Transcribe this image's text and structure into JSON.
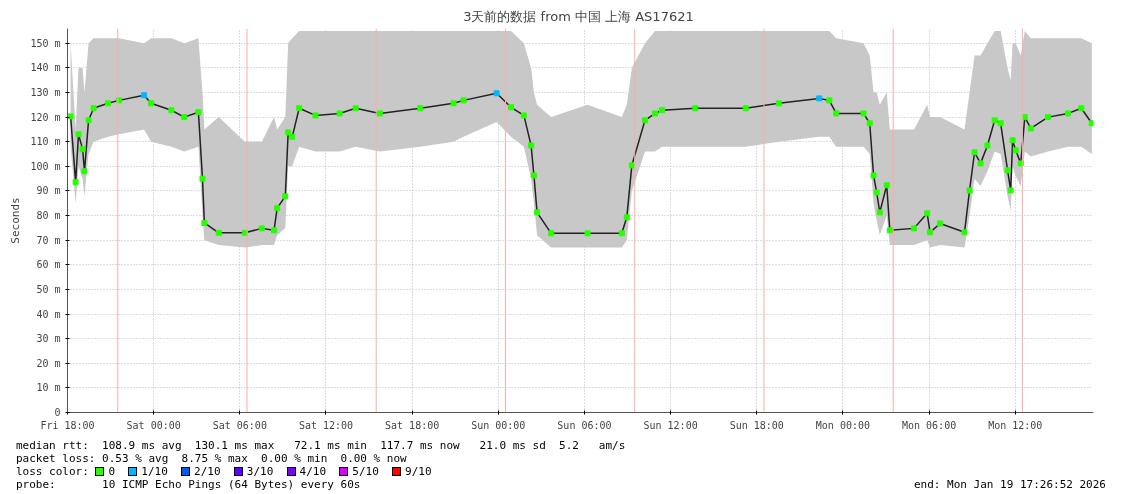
{
  "chart_data": {
    "type": "line",
    "title": "3天前的数据 from  中国 上海 AS17621",
    "ylabel": "Seconds",
    "xlim": [
      "2026-01-16T18:00",
      "2026-01-19T17:27"
    ],
    "ylim": [
      0,
      156
    ],
    "xticks": [
      {
        "value": "2026-01-16T18:00",
        "label": "Fri 18:00"
      },
      {
        "value": "2026-01-17T00:00",
        "label": "Sat 00:00"
      },
      {
        "value": "2026-01-17T06:00",
        "label": "Sat 06:00"
      },
      {
        "value": "2026-01-17T12:00",
        "label": "Sat 12:00"
      },
      {
        "value": "2026-01-17T18:00",
        "label": "Sat 18:00"
      },
      {
        "value": "2026-01-18T00:00",
        "label": "Sun 00:00"
      },
      {
        "value": "2026-01-18T06:00",
        "label": "Sun 06:00"
      },
      {
        "value": "2026-01-18T12:00",
        "label": "Sun 12:00"
      },
      {
        "value": "2026-01-18T18:00",
        "label": "Sun 18:00"
      },
      {
        "value": "2026-01-19T00:00",
        "label": "Mon 00:00"
      },
      {
        "value": "2026-01-19T06:00",
        "label": "Mon 06:00"
      },
      {
        "value": "2026-01-19T12:00",
        "label": "Mon 12:00"
      }
    ],
    "yticks": [
      0,
      {
        "value": 10,
        "label": "10 m"
      },
      {
        "value": 20,
        "label": "20 m"
      },
      {
        "value": 30,
        "label": "30 m"
      },
      {
        "value": 40,
        "label": "40 m"
      },
      {
        "value": 50,
        "label": "50 m"
      },
      {
        "value": 60,
        "label": "60 m"
      },
      {
        "value": 70,
        "label": "70 m"
      },
      {
        "value": 80,
        "label": "80 m"
      },
      {
        "value": 90,
        "label": "90 m"
      },
      {
        "value": 100,
        "label": "100 m"
      },
      {
        "value": 110,
        "label": "110 m"
      },
      {
        "value": 120,
        "label": "120 m"
      },
      {
        "value": 130,
        "label": "130 m"
      },
      {
        "value": 140,
        "label": "140 m"
      },
      {
        "value": 150,
        "label": "150 m"
      }
    ],
    "grid": true,
    "legend": "bottom",
    "legend_title": "loss color:",
    "series": [
      {
        "color": "#222222",
        "marker": "none",
        "x": [
          "2026-01-16T18:13",
          "2026-01-16T18:34",
          "2026-01-16T18:46",
          "2026-01-16T19:03",
          "2026-01-16T19:11",
          "2026-01-16T19:28",
          "2026-01-16T19:49",
          "2026-01-16T20:49",
          "2026-01-16T21:35",
          "2026-01-16T23:20",
          "2026-01-16T23:49",
          "2026-01-17T01:14",
          "2026-01-17T02:08",
          "2026-01-17T03:07",
          "2026-01-17T03:24",
          "2026-01-17T03:32",
          "2026-01-17T04:32",
          "2026-01-17T06:21",
          "2026-01-17T07:32",
          "2026-01-17T08:23",
          "2026-01-17T08:36",
          "2026-01-17T09:10",
          "2026-01-17T09:22",
          "2026-01-17T09:39",
          "2026-01-17T10:08",
          "2026-01-17T11:16",
          "2026-01-17T12:57",
          "2026-01-17T14:04",
          "2026-01-17T15:45",
          "2026-01-17T18:34",
          "2026-01-17T20:53",
          "2026-01-17T21:35",
          "2026-01-17T23:53",
          "2026-01-18T00:53",
          "2026-01-18T01:47",
          "2026-01-18T02:17",
          "2026-01-18T02:29",
          "2026-01-18T02:42",
          "2026-01-18T03:41",
          "2026-01-18T06:13",
          "2026-01-18T08:36",
          "2026-01-18T08:57",
          "2026-01-18T09:18",
          "2026-01-18T10:13",
          "2026-01-18T10:55",
          "2026-01-18T11:24",
          "2026-01-18T13:43",
          "2026-01-18T17:14",
          "2026-01-18T19:32",
          "2026-01-18T22:21",
          "2026-01-18T23:03",
          "2026-01-18T23:32",
          "2026-01-19T01:26",
          "2026-01-19T01:52",
          "2026-01-19T02:08",
          "2026-01-19T02:21",
          "2026-01-19T02:34",
          "2026-01-19T03:03",
          "2026-01-19T03:16",
          "2026-01-19T04:57",
          "2026-01-19T05:52",
          "2026-01-19T06:04",
          "2026-01-19T06:46",
          "2026-01-19T08:28",
          "2026-01-19T08:49",
          "2026-01-19T09:10",
          "2026-01-19T09:35",
          "2026-01-19T10:04",
          "2026-01-19T10:34",
          "2026-01-19T10:59",
          "2026-01-19T11:28",
          "2026-01-19T11:41",
          "2026-01-19T11:49",
          "2026-01-19T12:02",
          "2026-01-19T12:23",
          "2026-01-19T12:40",
          "2026-01-19T13:05",
          "2026-01-19T14:17",
          "2026-01-19T15:41",
          "2026-01-19T16:36",
          "2026-01-19T17:20"
        ],
        "values": [
          120.3,
          93.5,
          113,
          107,
          98,
          118.7,
          123.6,
          125.6,
          126.8,
          128.9,
          125.6,
          122.8,
          120,
          122,
          95,
          77,
          73,
          73,
          74.8,
          74,
          83,
          87.8,
          113.8,
          112,
          123.6,
          120.7,
          121.5,
          123.6,
          121.5,
          123.6,
          125.6,
          126.8,
          129.7,
          124,
          120.7,
          108.5,
          96.3,
          81.3,
          72.8,
          72.8,
          72.8,
          79.3,
          100.4,
          118.7,
          121.5,
          122.8,
          123.6,
          123.6,
          125.6,
          127.6,
          126.8,
          121.5,
          121.5,
          117.5,
          96.3,
          89.4,
          81.3,
          92.3,
          74,
          74.8,
          80.9,
          73.2,
          76.8,
          73.2,
          90.2,
          105.7,
          101.2,
          108.5,
          118.7,
          117.5,
          98.4,
          90.2,
          110.6,
          106.5,
          101.2,
          120,
          115.4,
          120,
          121.5,
          123.6,
          117.5
        ],
        "lower": [
          108,
          85,
          100,
          95,
          88,
          105,
          110,
          112,
          113,
          115,
          110,
          108,
          106,
          108,
          80,
          70,
          68,
          67,
          68,
          68,
          72,
          75,
          100,
          100,
          108,
          106,
          106,
          108,
          106,
          108,
          110,
          112,
          118,
          112,
          108,
          95,
          85,
          72,
          67,
          67,
          67,
          70,
          90,
          106,
          106,
          108,
          108,
          108,
          110,
          112,
          112,
          108,
          108,
          105,
          85,
          78,
          72,
          80,
          68,
          68,
          70,
          67,
          68,
          67,
          80,
          95,
          92,
          98,
          106,
          105,
          88,
          82,
          100,
          96,
          92,
          106,
          104,
          106,
          108,
          108,
          105
        ],
        "upper": [
          150,
          115,
          140,
          140,
          130,
          150,
          152,
          152,
          152,
          150,
          152,
          152,
          150,
          152,
          130,
          115,
          120,
          110,
          110,
          120,
          115,
          120,
          150,
          152,
          155,
          155,
          155,
          155,
          155,
          155,
          155,
          155,
          155,
          155,
          150,
          140,
          130,
          125,
          120,
          125,
          120,
          125,
          140,
          150,
          155,
          155,
          155,
          155,
          155,
          155,
          155,
          152,
          150,
          145,
          130,
          130,
          125,
          130,
          115,
          115,
          125,
          120,
          120,
          115,
          130,
          145,
          145,
          150,
          155,
          155,
          140,
          135,
          150,
          150,
          145,
          155,
          152,
          152,
          152,
          152,
          150
        ]
      },
      {
        "type": "scatter",
        "marker": "square",
        "name": "0",
        "color": "#26ff00",
        "x": [
          "2026-01-16T18:13",
          "2026-01-16T18:34",
          "2026-01-16T18:46",
          "2026-01-16T19:03",
          "2026-01-16T19:11",
          "2026-01-16T19:28",
          "2026-01-16T19:49",
          "2026-01-16T20:49",
          "2026-01-16T21:35",
          "2026-01-16T23:49",
          "2026-01-17T01:14",
          "2026-01-17T02:08",
          "2026-01-17T03:07",
          "2026-01-17T03:24",
          "2026-01-17T03:32",
          "2026-01-17T04:32",
          "2026-01-17T06:21",
          "2026-01-17T07:32",
          "2026-01-17T08:23",
          "2026-01-17T08:36",
          "2026-01-17T09:10",
          "2026-01-17T09:22",
          "2026-01-17T09:39",
          "2026-01-17T10:08",
          "2026-01-17T11:16",
          "2026-01-17T12:57",
          "2026-01-17T14:04",
          "2026-01-17T15:45",
          "2026-01-17T18:34",
          "2026-01-17T20:53",
          "2026-01-17T21:35",
          "2026-01-18T00:53",
          "2026-01-18T01:47",
          "2026-01-18T02:17",
          "2026-01-18T02:29",
          "2026-01-18T02:42",
          "2026-01-18T03:41",
          "2026-01-18T06:13",
          "2026-01-18T08:36",
          "2026-01-18T08:57",
          "2026-01-18T09:18",
          "2026-01-18T10:13",
          "2026-01-18T10:55",
          "2026-01-18T11:24",
          "2026-01-18T13:43",
          "2026-01-18T17:14",
          "2026-01-18T19:32",
          "2026-01-18T23:03",
          "2026-01-18T23:32",
          "2026-01-19T01:26",
          "2026-01-19T01:52",
          "2026-01-19T02:08",
          "2026-01-19T02:21",
          "2026-01-19T02:34",
          "2026-01-19T03:03",
          "2026-01-19T03:16",
          "2026-01-19T04:57",
          "2026-01-19T05:52",
          "2026-01-19T06:04",
          "2026-01-19T06:46",
          "2026-01-19T08:28",
          "2026-01-19T08:49",
          "2026-01-19T09:10",
          "2026-01-19T09:35",
          "2026-01-19T10:04",
          "2026-01-19T10:34",
          "2026-01-19T10:59",
          "2026-01-19T11:28",
          "2026-01-19T11:41",
          "2026-01-19T11:49",
          "2026-01-19T12:02",
          "2026-01-19T12:23",
          "2026-01-19T12:40",
          "2026-01-19T13:05",
          "2026-01-19T14:17",
          "2026-01-19T15:41",
          "2026-01-19T16:36",
          "2026-01-19T17:20"
        ],
        "values": [
          120.3,
          93.5,
          113,
          107,
          98,
          118.7,
          123.6,
          125.6,
          126.8,
          125.6,
          122.8,
          120,
          122,
          95,
          77,
          73,
          73,
          74.8,
          74,
          83,
          87.8,
          113.8,
          112,
          123.6,
          120.7,
          121.5,
          123.6,
          121.5,
          123.6,
          125.6,
          126.8,
          124,
          120.7,
          108.5,
          96.3,
          81.3,
          72.8,
          72.8,
          72.8,
          79.3,
          100.4,
          118.7,
          121.5,
          122.8,
          123.6,
          123.6,
          125.6,
          126.8,
          121.5,
          121.5,
          117.5,
          96.3,
          89.4,
          81.3,
          92.3,
          74,
          74.8,
          80.9,
          73.2,
          76.8,
          73.2,
          90.2,
          105.7,
          101.2,
          108.5,
          118.7,
          117.5,
          98.4,
          90.2,
          110.6,
          106.5,
          101.2,
          120,
          115.4,
          120,
          121.5,
          123.6,
          117.5
        ]
      },
      {
        "type": "scatter",
        "marker": "square",
        "name": "1/10",
        "color": "#00b8ff",
        "x": [
          "2026-01-16T23:20",
          "2026-01-17T23:53",
          "2026-01-18T22:21"
        ],
        "values": [
          128.9,
          129.7,
          127.6
        ]
      },
      {
        "type": "scatter",
        "name": "2/10",
        "color": "#0059ff"
      },
      {
        "type": "scatter",
        "name": "3/10",
        "color": "#5e00ff"
      },
      {
        "type": "scatter",
        "name": "4/10",
        "color": "#7e00ff"
      },
      {
        "type": "scatter",
        "name": "5/10",
        "color": "#dd00ff"
      },
      {
        "type": "scatter",
        "name": "9/10",
        "color": "#ff0000"
      }
    ],
    "ref_lines": [
      {
        "axis": "x",
        "value": "2026-01-16T21:30",
        "color": "#ffaaaa"
      },
      {
        "axis": "x",
        "value": "2026-01-17T06:30",
        "color": "#ffaaaa"
      },
      {
        "axis": "x",
        "value": "2026-01-17T15:30",
        "color": "#ffaaaa"
      },
      {
        "axis": "x",
        "value": "2026-01-18T00:30",
        "color": "#ffaaaa"
      },
      {
        "axis": "x",
        "value": "2026-01-18T09:30",
        "color": "#ffaaaa"
      },
      {
        "axis": "x",
        "value": "2026-01-18T18:30",
        "color": "#ffaaaa"
      },
      {
        "axis": "x",
        "value": "2026-01-19T03:30",
        "color": "#ffaaaa"
      },
      {
        "axis": "x",
        "value": "2026-01-19T12:30",
        "color": "#ffaaaa"
      }
    ],
    "annotations": [
      "median rtt:  108.9 ms avg  130.1 ms max   72.1 ms min  117.7 ms now   21.0 ms sd  5.2   am/s",
      "packet loss: 0.53 % avg  8.75 % max  0.00 % min  0.00 % now",
      "probe:       10 ICMP Echo Pings (64 Bytes) every 60s",
      "end: Mon Jan 19 17:26:52 2026"
    ]
  }
}
